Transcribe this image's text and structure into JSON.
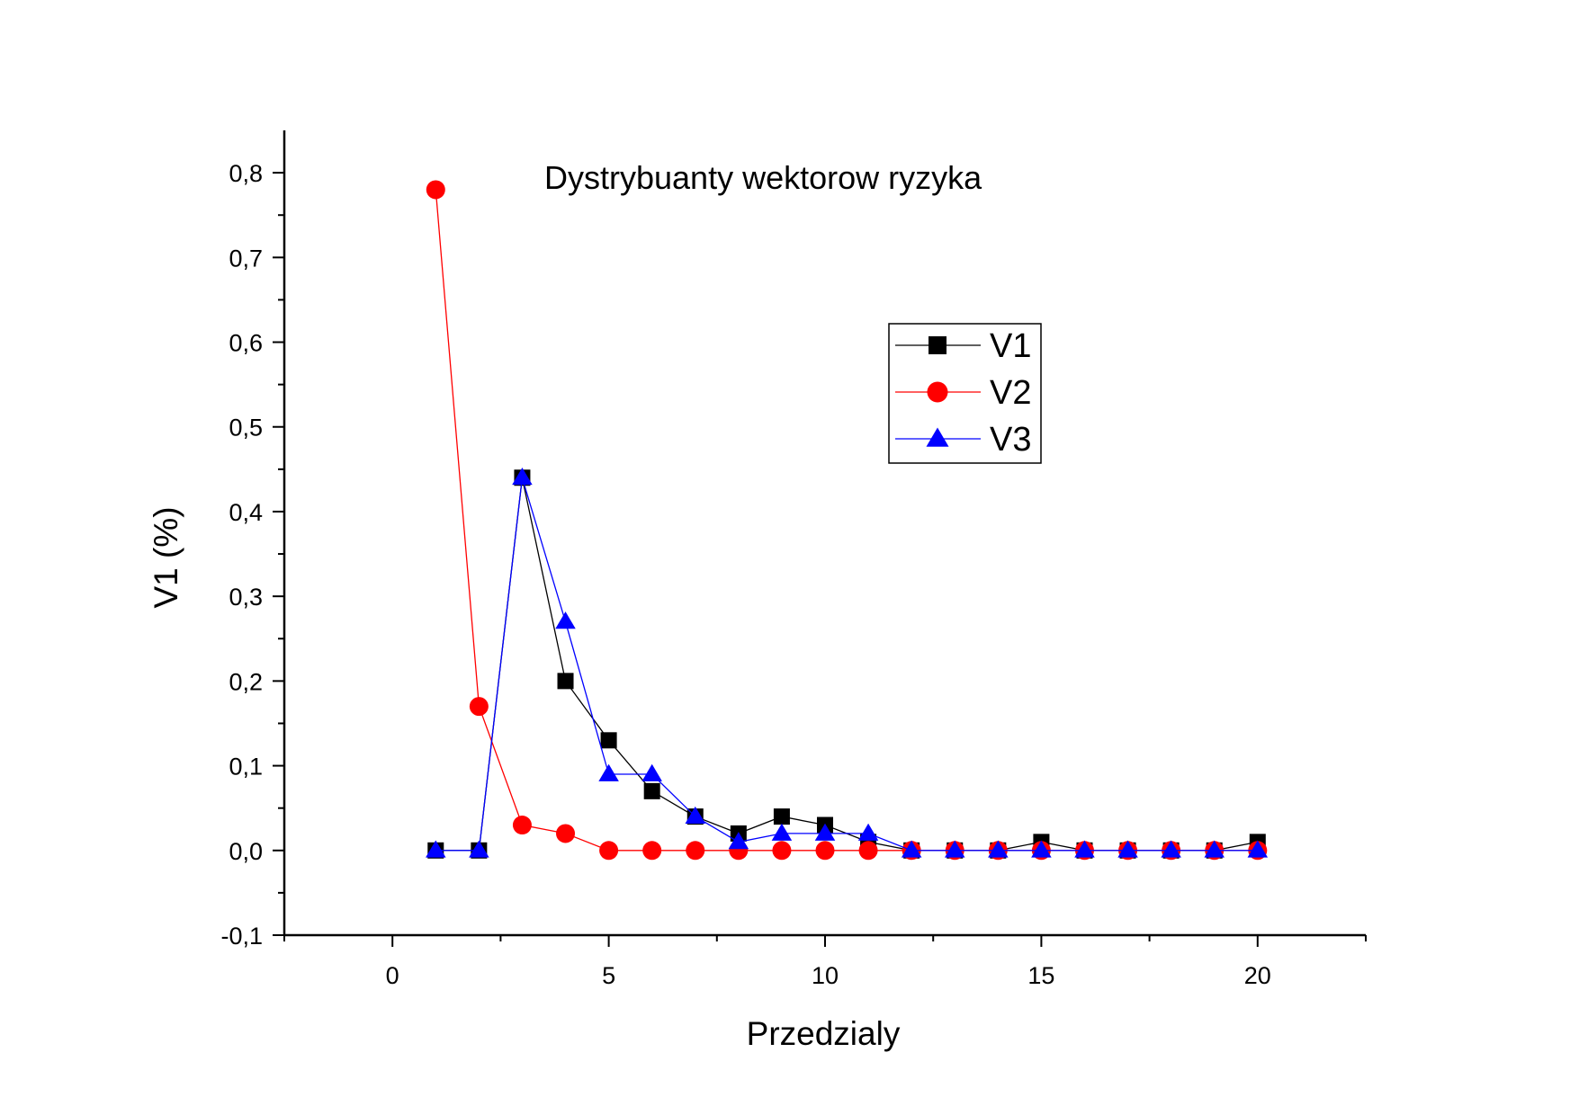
{
  "chart_data": {
    "type": "line",
    "title": "Dystrybuanty wektorow ryzyka",
    "xlabel": "Przedzialy",
    "ylabel": "V1 (%)",
    "xlim": [
      -2.5,
      22.5
    ],
    "ylim": [
      -0.1,
      0.85
    ],
    "x_ticks": [
      0,
      5,
      10,
      15,
      20
    ],
    "x_tick_labels": [
      "0",
      "5",
      "10",
      "15",
      "20"
    ],
    "y_ticks": [
      -0.1,
      0.0,
      0.1,
      0.2,
      0.3,
      0.4,
      0.5,
      0.6,
      0.7,
      0.8
    ],
    "y_tick_labels": [
      "-0,1",
      "0,0",
      "0,1",
      "0,2",
      "0,3",
      "0,4",
      "0,5",
      "0,6",
      "0,7",
      "0,8"
    ],
    "grid": false,
    "legend_position": "upper-middle-right",
    "x": [
      1,
      2,
      3,
      4,
      5,
      6,
      7,
      8,
      9,
      10,
      11,
      12,
      13,
      14,
      15,
      16,
      17,
      18,
      19,
      20
    ],
    "series": [
      {
        "name": "V1",
        "color": "#000000",
        "marker": "square",
        "values": [
          0,
          0,
          0.44,
          0.2,
          0.13,
          0.07,
          0.04,
          0.02,
          0.04,
          0.03,
          0.01,
          0,
          0,
          0,
          0.01,
          0,
          0,
          0,
          0,
          0.01
        ]
      },
      {
        "name": "V2",
        "color": "#ff0000",
        "marker": "circle",
        "values": [
          0.78,
          0.17,
          0.03,
          0.02,
          0,
          0,
          0,
          0,
          0,
          0,
          0,
          0,
          0,
          0,
          0,
          0,
          0,
          0,
          0,
          0
        ]
      },
      {
        "name": "V3",
        "color": "#0000ff",
        "marker": "triangle",
        "values": [
          0,
          0,
          0.44,
          0.27,
          0.09,
          0.09,
          0.04,
          0.01,
          0.02,
          0.02,
          0.02,
          0,
          0,
          0,
          0,
          0,
          0,
          0,
          0,
          0
        ]
      }
    ]
  }
}
